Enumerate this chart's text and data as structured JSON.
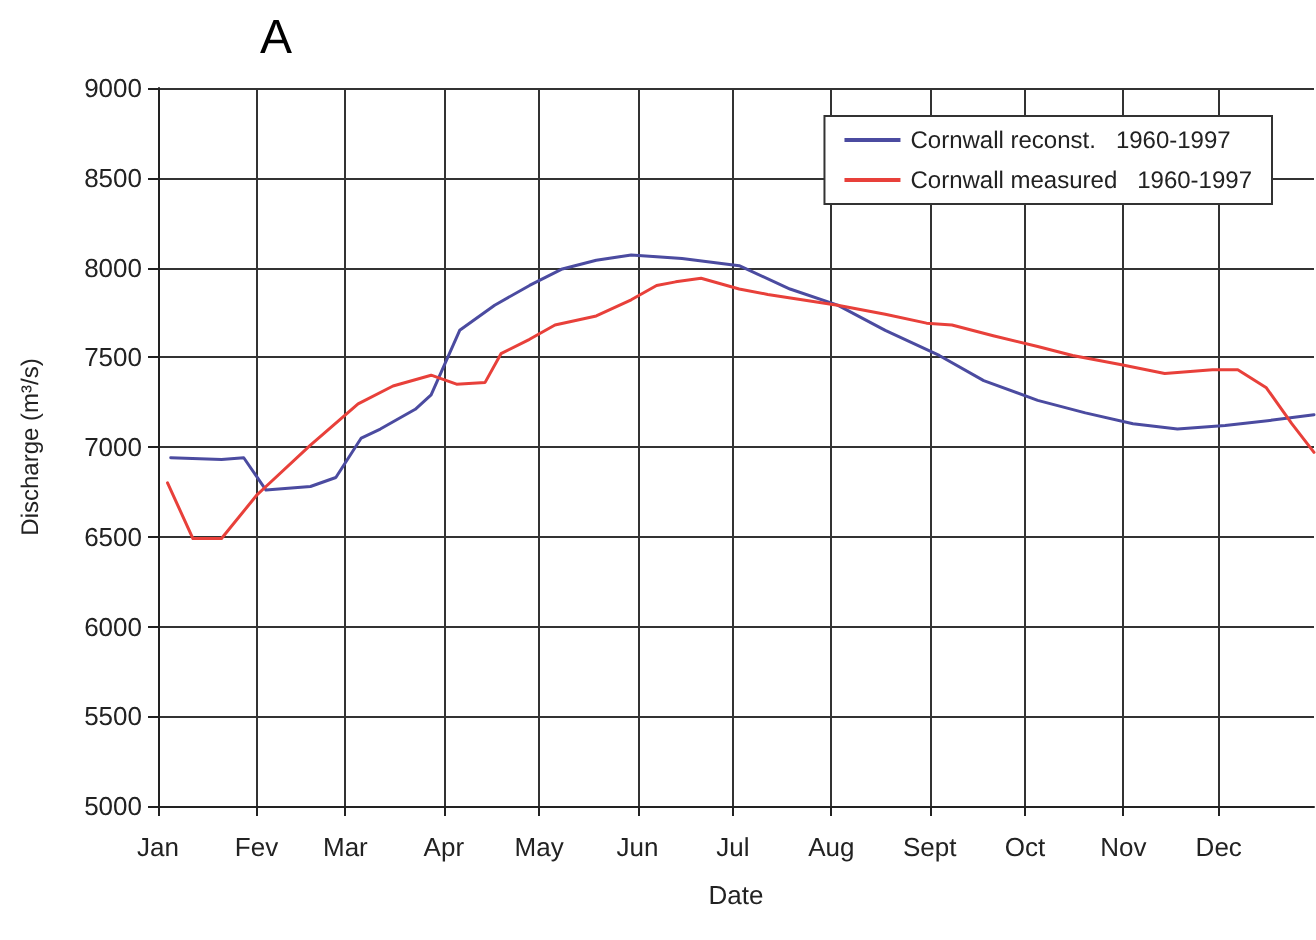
{
  "chart_data": {
    "type": "line",
    "title": "A",
    "xlabel": "Date",
    "ylabel": "Discharge (m³/s)",
    "xlim": [
      "--01-01",
      "--12-31"
    ],
    "xticks": [
      {
        "value": "--01-01",
        "label": "Jan"
      },
      {
        "value": "--02-01",
        "label": "Fev"
      },
      {
        "value": "--03-01",
        "label": "Mar"
      },
      {
        "value": "--04-01",
        "label": "Apr"
      },
      {
        "value": "--05-01",
        "label": "May"
      },
      {
        "value": "--06-01",
        "label": "Jun"
      },
      {
        "value": "--07-01",
        "label": "Jul"
      },
      {
        "value": "--08-01",
        "label": "Aug"
      },
      {
        "value": "--09-01",
        "label": "Sept"
      },
      {
        "value": "--10-01",
        "label": "Oct"
      },
      {
        "value": "--11-01",
        "label": "Nov"
      },
      {
        "value": "--12-01",
        "label": "Dec"
      }
    ],
    "ylim": [
      5000,
      9000
    ],
    "yticks": [
      5000,
      5500,
      6000,
      6500,
      7000,
      7500,
      8000,
      8500,
      9000
    ],
    "grid": true,
    "legend": "top right",
    "marker": "none",
    "line_style": "solid",
    "series": [
      {
        "name": "Cornwall reconst.   1960-1997",
        "color": "#4b4ba0",
        "x": [
          "--01-05",
          "--01-21",
          "--01-28",
          "--02-04",
          "--02-18",
          "--02-26",
          "--03-06",
          "--03-12",
          "--03-23",
          "--03-28",
          "--04-06",
          "--04-17",
          "--04-28",
          "--05-08",
          "--05-19",
          "--05-30",
          "--06-15",
          "--07-03",
          "--07-19",
          "--08-03",
          "--08-18",
          "--09-04",
          "--09-18",
          "--10-05",
          "--10-20",
          "--11-04",
          "--11-18",
          "--12-03",
          "--12-18",
          "--12-31"
        ],
        "values": [
          6940,
          6930,
          6940,
          6760,
          6780,
          6830,
          7050,
          7100,
          7210,
          7290,
          7650,
          7790,
          7900,
          7990,
          8040,
          8070,
          8050,
          8010,
          7880,
          7790,
          7650,
          7510,
          7370,
          7260,
          7190,
          7130,
          7100,
          7120,
          7150,
          7180
        ]
      },
      {
        "name": "Cornwall measured   1960-1997",
        "color": "#e8403a",
        "x": [
          "--01-04",
          "--01-12",
          "--01-21",
          "--02-01",
          "--02-04",
          "--02-18",
          "--03-05",
          "--03-16",
          "--03-28",
          "--04-05",
          "--04-14",
          "--04-19",
          "--04-28",
          "--05-06",
          "--05-19",
          "--05-30",
          "--06-07",
          "--06-13",
          "--06-21",
          "--07-03",
          "--07-12",
          "--08-03",
          "--08-18",
          "--08-31",
          "--09-08",
          "--09-21",
          "--10-05",
          "--10-16",
          "--10-31",
          "--11-14",
          "--11-29",
          "--12-07",
          "--12-16",
          "--12-24",
          "--12-31"
        ],
        "values": [
          6800,
          6490,
          6490,
          6730,
          6780,
          7010,
          7240,
          7340,
          7400,
          7350,
          7360,
          7520,
          7600,
          7680,
          7730,
          7820,
          7900,
          7920,
          7940,
          7880,
          7850,
          7790,
          7740,
          7690,
          7680,
          7620,
          7560,
          7510,
          7460,
          7410,
          7430,
          7430,
          7330,
          7130,
          6970
        ]
      }
    ]
  }
}
